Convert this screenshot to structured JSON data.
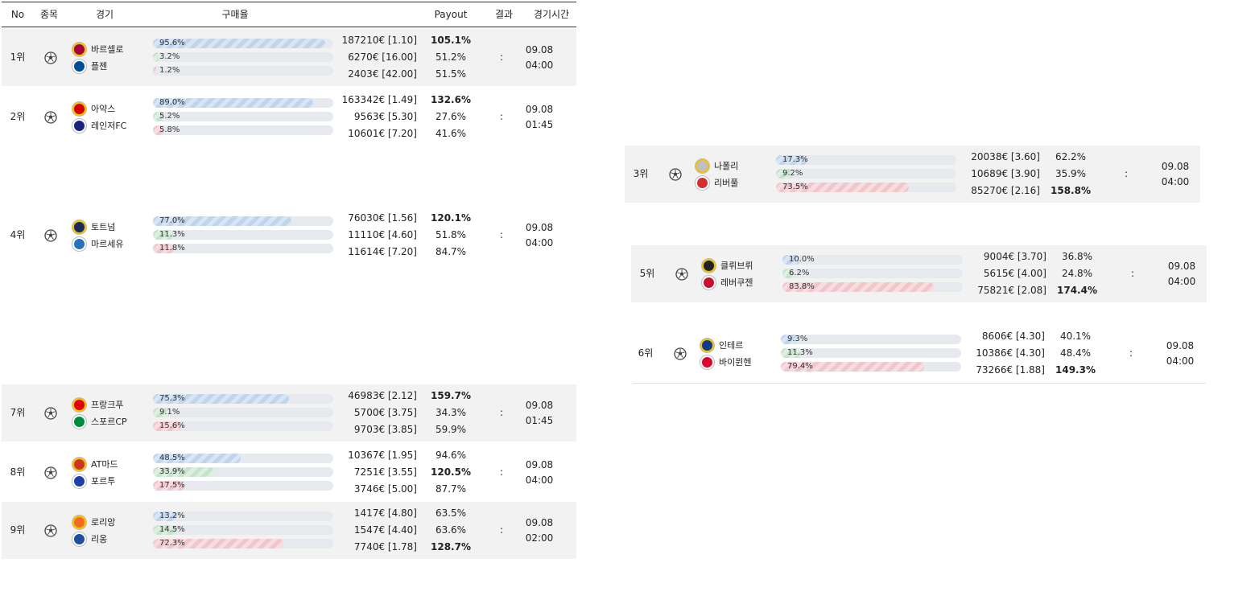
{
  "header": {
    "no": "No",
    "sport": "종목",
    "match": "경기",
    "buy_rate": "구매율",
    "payout": "Payout",
    "result": "결과",
    "time": "경기시간"
  },
  "colors": {
    "row_gray": "#f2f2f2",
    "bar_blue": "#c0d4ec",
    "bar_green": "#c6e4cc",
    "bar_red": "#f0c6cc"
  },
  "rows": [
    {
      "rank": "1위",
      "home": "바르셀로",
      "away": "플젠",
      "home_logo": "barcelona-logo-icon",
      "away_logo": "plzen-logo-icon",
      "pcts": [
        "95.6%",
        "3.2%",
        "1.2%"
      ],
      "fills": [
        95.6,
        3.2,
        1.2
      ],
      "amounts": [
        "187210€ [1.10]",
        "6270€ [16.00]",
        "2403€ [42.00]"
      ],
      "payouts": [
        "105.1%",
        "51.2%",
        "51.5%"
      ],
      "bold": 0,
      "result": ":",
      "date": "09.08",
      "clock": "04:00"
    },
    {
      "rank": "2위",
      "home": "아약스",
      "away": "레인저FC",
      "home_logo": "ajax-logo-icon",
      "away_logo": "rangers-logo-icon",
      "pcts": [
        "89.0%",
        "5.2%",
        "5.8%"
      ],
      "fills": [
        89.0,
        5.2,
        5.8
      ],
      "amounts": [
        "163342€ [1.49]",
        "9563€ [5.30]",
        "10601€ [7.20]"
      ],
      "payouts": [
        "132.6%",
        "27.6%",
        "41.6%"
      ],
      "bold": 0,
      "result": ":",
      "date": "09.08",
      "clock": "01:45"
    },
    {
      "rank": "3위",
      "home": "나폴리",
      "away": "리버풀",
      "home_logo": "napoli-logo-icon",
      "away_logo": "liverpool-logo-icon",
      "pcts": [
        "17.3%",
        "9.2%",
        "73.5%"
      ],
      "fills": [
        17.3,
        9.2,
        73.5
      ],
      "amounts": [
        "20038€ [3.60]",
        "10689€ [3.90]",
        "85270€ [2.16]"
      ],
      "payouts": [
        "62.2%",
        "35.9%",
        "158.8%"
      ],
      "bold": 2,
      "result": ":",
      "date": "09.08",
      "clock": "04:00"
    },
    {
      "rank": "4위",
      "home": "토트넘",
      "away": "마르세유",
      "home_logo": "tottenham-logo-icon",
      "away_logo": "marseille-logo-icon",
      "pcts": [
        "77.0%",
        "11.3%",
        "11.8%"
      ],
      "fills": [
        77.0,
        11.3,
        11.8
      ],
      "amounts": [
        "76030€ [1.56]",
        "11110€ [4.60]",
        "11614€ [7.20]"
      ],
      "payouts": [
        "120.1%",
        "51.8%",
        "84.7%"
      ],
      "bold": 0,
      "result": ":",
      "date": "09.08",
      "clock": "04:00"
    },
    {
      "rank": "5위",
      "home": "클뤼브뤼",
      "away": "레버쿠젠",
      "home_logo": "club-brugge-logo-icon",
      "away_logo": "leverkusen-logo-icon",
      "pcts": [
        "10.0%",
        "6.2%",
        "83.8%"
      ],
      "fills": [
        10.0,
        6.2,
        83.8
      ],
      "amounts": [
        "9004€ [3.70]",
        "5615€ [4.00]",
        "75821€ [2.08]"
      ],
      "payouts": [
        "36.8%",
        "24.8%",
        "174.4%"
      ],
      "bold": 2,
      "result": ":",
      "date": "09.08",
      "clock": "04:00"
    },
    {
      "rank": "6위",
      "home": "인테르",
      "away": "바이뮌헨",
      "home_logo": "inter-logo-icon",
      "away_logo": "bayern-logo-icon",
      "pcts": [
        "9.3%",
        "11.3%",
        "79.4%"
      ],
      "fills": [
        9.3,
        11.3,
        79.4
      ],
      "amounts": [
        "8606€ [4.30]",
        "10386€ [4.30]",
        "73266€ [1.88]"
      ],
      "payouts": [
        "40.1%",
        "48.4%",
        "149.3%"
      ],
      "bold": 2,
      "result": ":",
      "date": "09.08",
      "clock": "04:00"
    },
    {
      "rank": "7위",
      "home": "프랑크푸",
      "away": "스포르CP",
      "home_logo": "frankfurt-logo-icon",
      "away_logo": "sporting-logo-icon",
      "pcts": [
        "75.3%",
        "9.1%",
        "15.6%"
      ],
      "fills": [
        75.3,
        9.1,
        15.6
      ],
      "amounts": [
        "46983€ [2.12]",
        "5700€ [3.75]",
        "9703€ [3.85]"
      ],
      "payouts": [
        "159.7%",
        "34.3%",
        "59.9%"
      ],
      "bold": 0,
      "result": ":",
      "date": "09.08",
      "clock": "01:45"
    },
    {
      "rank": "8위",
      "home": "AT마드",
      "away": "포르투",
      "home_logo": "atletico-logo-icon",
      "away_logo": "porto-logo-icon",
      "pcts": [
        "48.5%",
        "33.9%",
        "17.5%"
      ],
      "fills": [
        48.5,
        33.9,
        17.5
      ],
      "amounts": [
        "10367€ [1.95]",
        "7251€ [3.55]",
        "3746€ [5.00]"
      ],
      "payouts": [
        "94.6%",
        "120.5%",
        "87.7%"
      ],
      "bold": 1,
      "result": ":",
      "date": "09.08",
      "clock": "04:00"
    },
    {
      "rank": "9위",
      "home": "로리앙",
      "away": "리옹",
      "home_logo": "lorient-logo-icon",
      "away_logo": "lyon-logo-icon",
      "pcts": [
        "13.2%",
        "14.5%",
        "72.3%"
      ],
      "fills": [
        13.2,
        14.5,
        72.3
      ],
      "amounts": [
        "1417€ [4.80]",
        "1547€ [4.40]",
        "7740€ [1.78]"
      ],
      "payouts": [
        "63.5%",
        "63.6%",
        "128.7%"
      ],
      "bold": 2,
      "result": ":",
      "date": "09.08",
      "clock": "02:00"
    }
  ]
}
